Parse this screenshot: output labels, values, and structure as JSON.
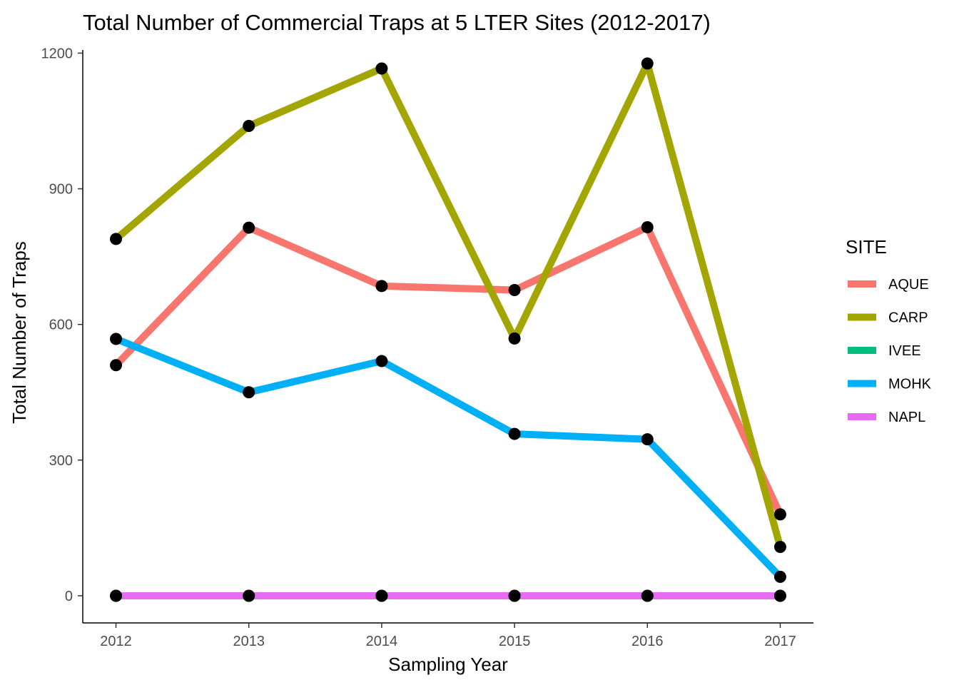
{
  "chart_data": {
    "type": "line",
    "title": "Total Number of Commercial Traps at 5 LTER Sites (2012-2017)",
    "xlabel": "Sampling Year",
    "ylabel": "Total Number of Traps",
    "x": [
      2012,
      2013,
      2014,
      2015,
      2016,
      2017
    ],
    "x_tick_labels": [
      "2012",
      "2013",
      "2014",
      "2015",
      "2016",
      "2017"
    ],
    "y_ticks": [
      0,
      300,
      600,
      900,
      1200
    ],
    "y_tick_labels": [
      "0",
      "300",
      "600",
      "900",
      "1200"
    ],
    "xlim": [
      2011.75,
      2017.25
    ],
    "ylim": [
      -60,
      1207
    ],
    "grid": false,
    "legend_title": "SITE",
    "legend_position": "right",
    "point_color": "#000000",
    "series": [
      {
        "name": "AQUE",
        "color": "#F8766D",
        "values": [
          510,
          814,
          685,
          676,
          815,
          180
        ]
      },
      {
        "name": "CARP",
        "color": "#A3A500",
        "values": [
          789,
          1039,
          1166,
          569,
          1177,
          108
        ]
      },
      {
        "name": "IVEE",
        "color": "#00BF7D",
        "values": [
          0,
          0,
          0,
          0,
          0,
          0
        ]
      },
      {
        "name": "MOHK",
        "color": "#00B0F6",
        "values": [
          568,
          450,
          519,
          358,
          346,
          42
        ]
      },
      {
        "name": "NAPL",
        "color": "#E76BF3",
        "values": [
          0,
          0,
          0,
          0,
          0,
          0
        ]
      }
    ]
  }
}
